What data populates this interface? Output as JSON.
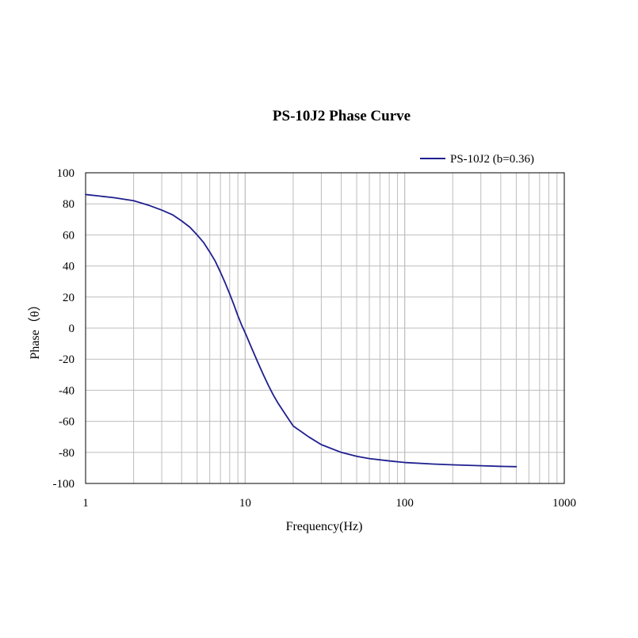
{
  "chart_data": {
    "type": "line",
    "title": "PS-10J2 Phase Curve",
    "xlabel": "Frequency(Hz)",
    "ylabel": "Phase（θ）",
    "x_scale": "log",
    "xlim": [
      1,
      1000
    ],
    "ylim": [
      -100,
      100
    ],
    "x_ticks": [
      "1",
      "10",
      "100",
      "1000"
    ],
    "y_ticks": [
      "100",
      "80",
      "60",
      "40",
      "20",
      "0",
      "-20",
      "-40",
      "-60",
      "-80",
      "-100"
    ],
    "grid": true,
    "legend_position": "top-right",
    "series": [
      {
        "name": "PS-10J2 (b=0.36)",
        "color": "#1f1f8f",
        "x": [
          1,
          1.5,
          2,
          2.5,
          3,
          3.5,
          4,
          4.5,
          5,
          5.5,
          6,
          6.5,
          7,
          7.5,
          8,
          8.5,
          9,
          9.5,
          10,
          11,
          12,
          13,
          14,
          15,
          16,
          18,
          20,
          25,
          30,
          40,
          50,
          60,
          80,
          100,
          150,
          200,
          300,
          400,
          500
        ],
        "y": [
          86,
          84,
          82,
          79,
          76,
          73,
          69,
          65,
          60,
          55,
          49,
          43,
          36,
          29,
          22,
          15,
          8,
          2,
          -3,
          -13,
          -22,
          -30,
          -37,
          -43,
          -48,
          -56,
          -63,
          -70,
          -75,
          -80,
          -82.5,
          -84,
          -85.5,
          -86.5,
          -87.5,
          -88,
          -88.6,
          -89,
          -89.2
        ]
      }
    ]
  }
}
